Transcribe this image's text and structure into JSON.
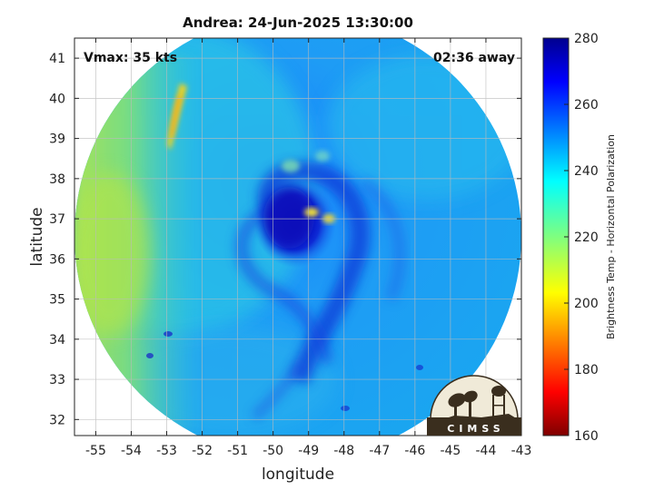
{
  "title": "Andrea: 24-Jun-2025 13:30:00",
  "vmax": "Vmax: 35 kts",
  "time_away": "02:36 away",
  "xlabel": "longitude",
  "ylabel": "latitude",
  "colorbar": {
    "label": "Brightness Temp - Horizontal Polarization",
    "min": 160,
    "max": 280,
    "ticks": [
      "160",
      "180",
      "200",
      "220",
      "240",
      "260",
      "280"
    ]
  },
  "axes": {
    "xlim": [
      -55.6,
      -43
    ],
    "ylim": [
      31.6,
      41.5
    ],
    "xticks": [
      "-55",
      "-54",
      "-53",
      "-52",
      "-51",
      "-50",
      "-49",
      "-48",
      "-47",
      "-46",
      "-45",
      "-44",
      "-43"
    ],
    "yticks": [
      "32",
      "33",
      "34",
      "35",
      "36",
      "37",
      "38",
      "39",
      "40",
      "41"
    ],
    "grid": true
  },
  "map": {
    "storm_center": [
      -49.4,
      36.8
    ],
    "colors": {
      "warm": "#00008f",
      "cold": "#7f0000"
    }
  },
  "logo": {
    "text": "CIMSS"
  }
}
